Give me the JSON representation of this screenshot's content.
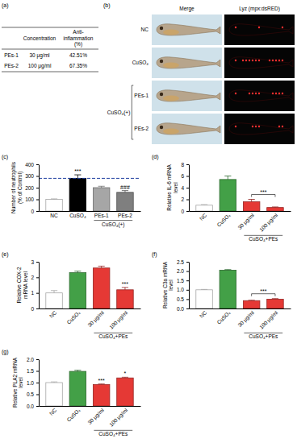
{
  "table": {
    "label": "(a)",
    "columns": [
      "Concentration",
      "Anti-inflammation (%)"
    ],
    "rows": [
      [
        "PEs-1",
        "30 μg/ml",
        "42.51%"
      ],
      [
        "PEs-2",
        "100 μg/ml",
        "67.35%"
      ]
    ]
  },
  "image_panel": {
    "label": "(b)",
    "columns": [
      "Merge",
      "Lyz (mpx:dsRED)"
    ],
    "rows": [
      "NC",
      "CuSO₄",
      "PEs-1",
      "PEs-2"
    ],
    "group": {
      "label": "CuSO₄(+)",
      "rows": [
        2,
        3
      ]
    }
  },
  "chart_data": [
    {
      "type": "bar",
      "label": "(c)",
      "y_label": "Number of neutrophils (% of Control)",
      "categories": [
        "NC",
        "CuSO₄",
        "PEs-1",
        "PEs-2"
      ],
      "values": [
        100,
        280,
        200,
        160
      ],
      "errors": [
        4,
        30,
        12,
        15
      ],
      "colors": [
        "#ffffff",
        "#000000",
        "#a6a6a6",
        "#7f7f7f"
      ],
      "ylim": [
        0,
        400
      ],
      "yticks": [
        0,
        100,
        200,
        300,
        400
      ],
      "reference_line": {
        "value": 280,
        "color": "#1f3f9f",
        "line_style": "dashed"
      },
      "annotations": [
        {
          "text": "***",
          "at": [
            1
          ]
        },
        {
          "text": "###",
          "at": [
            3
          ]
        }
      ],
      "group": {
        "label": "CuSO₄(+)",
        "at": [
          2,
          3
        ]
      }
    },
    {
      "type": "bar",
      "label": "(d)",
      "y_label": "Relative IL-6 mRNA level",
      "categories": [
        "NC",
        "CuSO₄",
        "30 μg/ml",
        "100 μg/ml"
      ],
      "values": [
        1,
        5.4,
        1.6,
        0.6
      ],
      "errors": [
        0.1,
        0.6,
        0.4,
        0.1
      ],
      "colors": [
        "#ffffff",
        "#43a047",
        "#e53935",
        "#e53935"
      ],
      "ylim": [
        0,
        8
      ],
      "yticks": [
        0,
        2,
        4,
        6,
        8
      ],
      "annotations": [
        {
          "text": "***",
          "at": [
            2,
            3
          ]
        }
      ],
      "group": {
        "label": "CuSO₄+PEs",
        "at": [
          2,
          3
        ]
      }
    },
    {
      "type": "bar",
      "label": "(e)",
      "y_label": "Relative COX-2 mRNA level",
      "categories": [
        "NC",
        "CuSO₄",
        "30 μg/ml",
        "100 μg/ml"
      ],
      "values": [
        1,
        2.3,
        2.6,
        1.2
      ],
      "errors": [
        0.15,
        0.1,
        0.12,
        0.15
      ],
      "colors": [
        "#ffffff",
        "#43a047",
        "#e53935",
        "#e53935"
      ],
      "ylim": [
        0,
        3
      ],
      "yticks": [
        0,
        1,
        2,
        3
      ],
      "annotations": [
        {
          "text": "***",
          "at": [
            3
          ]
        }
      ],
      "group": {
        "label": "CuSO₄+PEs",
        "at": [
          2,
          3
        ]
      }
    },
    {
      "type": "bar",
      "label": "(f)",
      "y_label": "Relative C3a mRNA level",
      "categories": [
        "NC",
        "CuSO₄",
        "30 μg/ml",
        "100 μg/ml"
      ],
      "values": [
        1,
        2.05,
        0.42,
        0.5
      ],
      "errors": [
        0.02,
        0.03,
        0.02,
        0.03
      ],
      "colors": [
        "#ffffff",
        "#43a047",
        "#e53935",
        "#e53935"
      ],
      "ylim": [
        0,
        2.5
      ],
      "yticks": [
        {
          "value": 0,
          "label": "0.0"
        },
        0.5,
        {
          "value": 1,
          "label": "1.0"
        },
        1.5,
        {
          "value": 2,
          "label": "2.0"
        },
        2.5
      ],
      "annotations": [
        {
          "text": "***",
          "at": [
            2,
            3
          ]
        }
      ],
      "group": {
        "label": "CuSO₄+PEs",
        "at": [
          2,
          3
        ]
      }
    },
    {
      "type": "bar",
      "label": "(g)",
      "y_label": "Relative PLA2 mRNA level",
      "categories": [
        "NC",
        "CuSO₄",
        "30 μg/ml",
        "100 μg/ml"
      ],
      "values": [
        1,
        1.48,
        0.92,
        1.2
      ],
      "errors": [
        0.03,
        0.05,
        0.02,
        0.03
      ],
      "colors": [
        "#ffffff",
        "#43a047",
        "#e53935",
        "#e53935"
      ],
      "ylim": [
        0,
        2
      ],
      "yticks": [
        {
          "value": 0,
          "label": "0.0"
        },
        0.5,
        {
          "value": 1,
          "label": "1.0"
        },
        1.5,
        {
          "value": 2,
          "label": "2.0"
        }
      ],
      "annotations": [
        {
          "text": "***",
          "at": [
            2
          ]
        },
        {
          "text": "*",
          "at": [
            3
          ]
        }
      ],
      "group": {
        "label": "CuSO₄+PEs",
        "at": [
          2,
          3
        ]
      }
    }
  ]
}
